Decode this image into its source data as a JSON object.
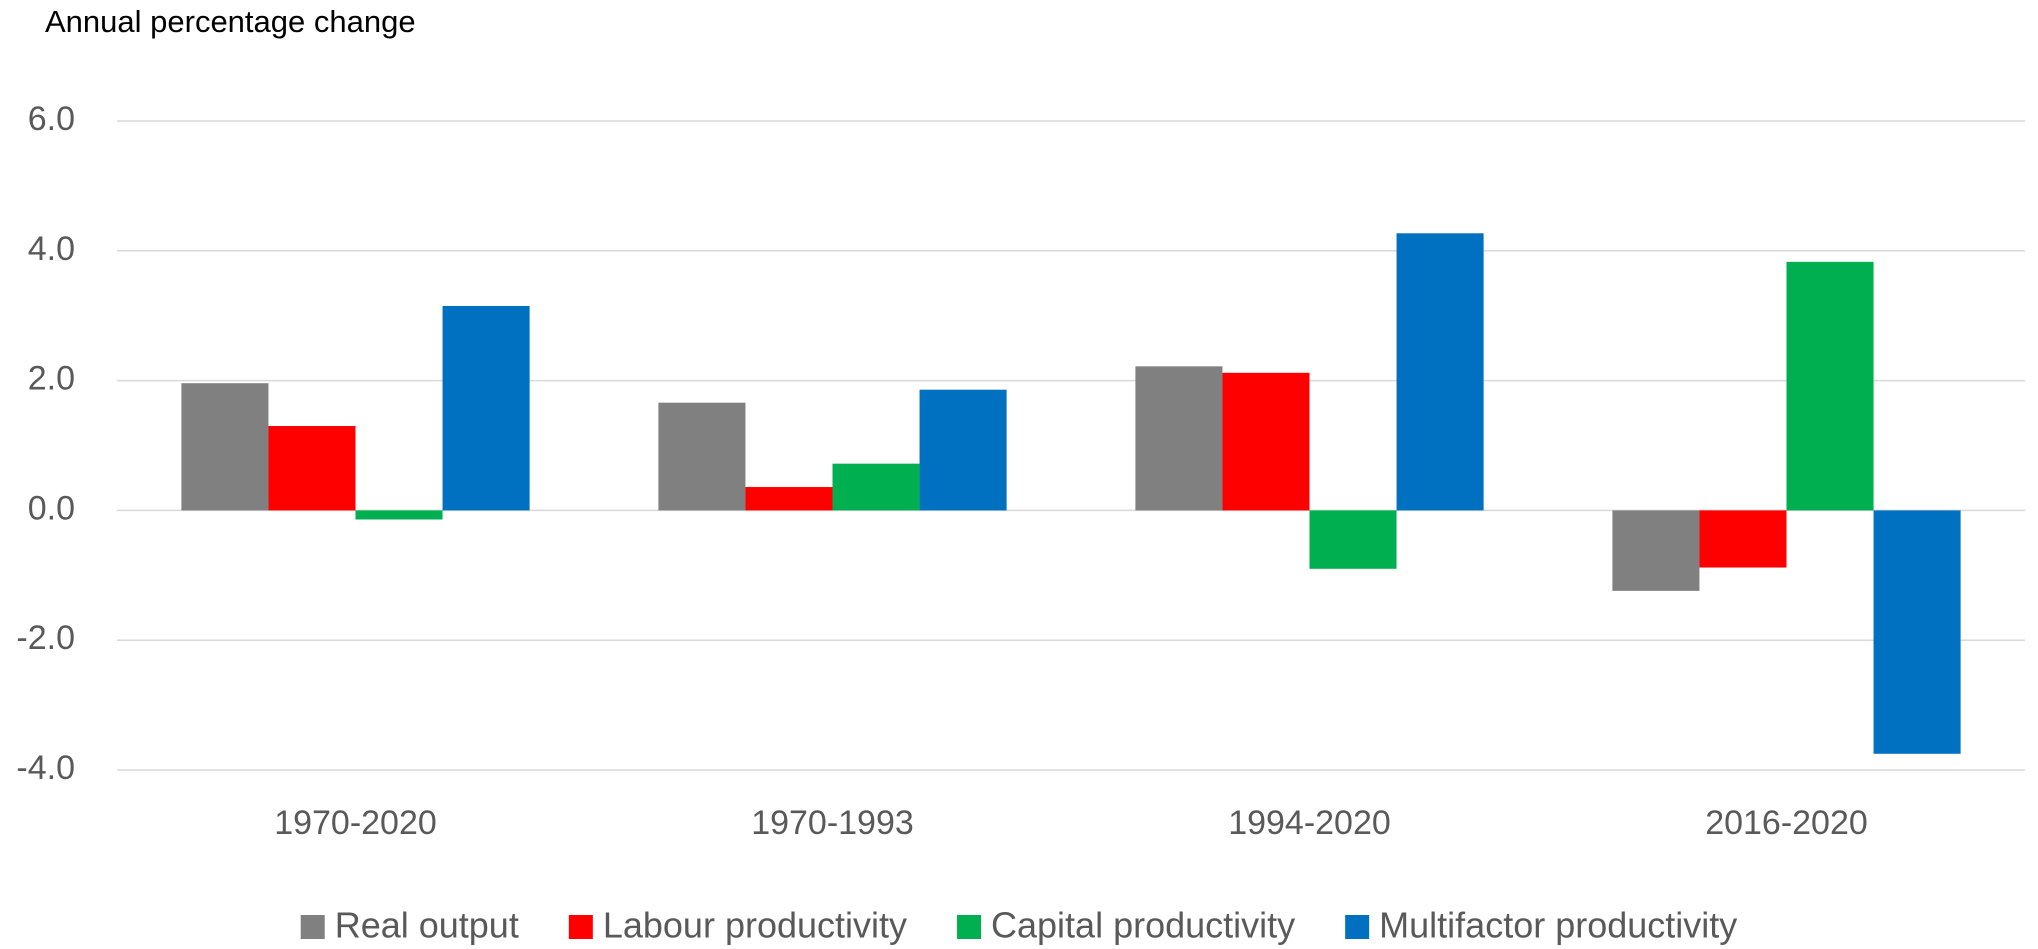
{
  "chart_data": {
    "type": "bar",
    "title": "Annual percentage change",
    "categories": [
      "1970-2020",
      "1970-1993",
      "1994-2020",
      "2016-2020"
    ],
    "series": [
      {
        "name": "Real output",
        "color": "#808080",
        "values": [
          1.96,
          1.66,
          2.22,
          -1.24
        ]
      },
      {
        "name": "Labour productivity",
        "color": "#ff0000",
        "values": [
          1.3,
          0.36,
          2.12,
          -0.88
        ]
      },
      {
        "name": "Capital productivity",
        "color": "#00b050",
        "values": [
          -0.14,
          0.72,
          -0.9,
          3.83
        ]
      },
      {
        "name": "Multifactor productivity",
        "color": "#0070c0",
        "values": [
          3.15,
          1.86,
          4.27,
          -3.75
        ]
      }
    ],
    "ylim": [
      -4,
      6
    ],
    "yticks": [
      {
        "value": -4,
        "label": "-4.0"
      },
      {
        "value": -2,
        "label": "-2.0"
      },
      {
        "value": 0,
        "label": "0.0"
      },
      {
        "value": 2,
        "label": "2.0"
      },
      {
        "value": 4,
        "label": "4.0"
      },
      {
        "value": 6,
        "label": "6.0"
      }
    ],
    "grid": true,
    "legend": "bottom"
  }
}
